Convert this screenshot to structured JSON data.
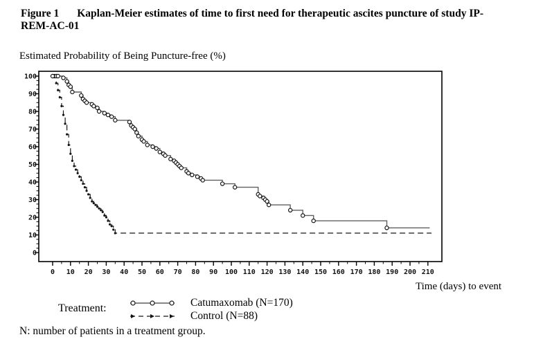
{
  "figure": {
    "label": "Figure 1",
    "title": "Kaplan-Meier estimates of time to first need for therapeutic ascites puncture of study IP-REM-AC-01"
  },
  "legend": {
    "label": "Treatment:"
  },
  "footnote": "N: number of patients in a treatment group.",
  "chart_data": {
    "type": "line",
    "subtype": "kaplan-meier-step",
    "title": "",
    "ylabel": "Estimated Probability of Being Puncture-free (%)",
    "xlabel": "Time (days) to event",
    "xlim": [
      0,
      210
    ],
    "ylim": [
      0,
      100
    ],
    "x_ticks": [
      0,
      10,
      20,
      30,
      40,
      50,
      60,
      70,
      80,
      90,
      100,
      110,
      120,
      130,
      140,
      150,
      160,
      170,
      180,
      190,
      200,
      210
    ],
    "y_ticks": [
      0,
      10,
      20,
      30,
      40,
      50,
      60,
      70,
      80,
      90,
      100
    ],
    "x_minor_step": 5,
    "y_minor_step": 2.5,
    "grid": false,
    "legend_position": "bottom",
    "series": [
      {
        "name": "Catumaxomab (N=170)",
        "line_style": "solid",
        "marker": "open-circle",
        "color": "#5f5f5f",
        "marker_color": "#151515",
        "end_day": 211,
        "extra_markers": [
          [
            1,
            100
          ],
          [
            2,
            100
          ],
          [
            3,
            100
          ]
        ],
        "points": [
          [
            0,
            100
          ],
          [
            6,
            99
          ],
          [
            8,
            97
          ],
          [
            9,
            95
          ],
          [
            10,
            94
          ],
          [
            11,
            91
          ],
          [
            16,
            89
          ],
          [
            17,
            87
          ],
          [
            18,
            86
          ],
          [
            19,
            85
          ],
          [
            22,
            84
          ],
          [
            23,
            83
          ],
          [
            25,
            82
          ],
          [
            26,
            80
          ],
          [
            29,
            79
          ],
          [
            31,
            78
          ],
          [
            33,
            77
          ],
          [
            35,
            75
          ],
          [
            43,
            74
          ],
          [
            44,
            72
          ],
          [
            45,
            71
          ],
          [
            46,
            70
          ],
          [
            47,
            68
          ],
          [
            48,
            66
          ],
          [
            50,
            64
          ],
          [
            51,
            63
          ],
          [
            53,
            61
          ],
          [
            56,
            60
          ],
          [
            58,
            59
          ],
          [
            60,
            57
          ],
          [
            62,
            56
          ],
          [
            63,
            55
          ],
          [
            66,
            53
          ],
          [
            68,
            52
          ],
          [
            69,
            51
          ],
          [
            70,
            50
          ],
          [
            71,
            49
          ],
          [
            72,
            48
          ],
          [
            75,
            46
          ],
          [
            76,
            45
          ],
          [
            78,
            44
          ],
          [
            81,
            43
          ],
          [
            83,
            42
          ],
          [
            84,
            41
          ],
          [
            95,
            39
          ],
          [
            102,
            37
          ],
          [
            115,
            33
          ],
          [
            116,
            32
          ],
          [
            118,
            31
          ],
          [
            119,
            30
          ],
          [
            120,
            29
          ],
          [
            121,
            27
          ],
          [
            133,
            24
          ],
          [
            140,
            21
          ],
          [
            146,
            18
          ],
          [
            187,
            14
          ]
        ]
      },
      {
        "name": "Control (N=88)",
        "line_style": "dashed",
        "marker": "dot",
        "color": "#151515",
        "marker_color": "#151515",
        "end_day": 212,
        "plateau_value": 11,
        "points": [
          [
            0,
            100
          ],
          [
            2,
            96
          ],
          [
            3,
            92
          ],
          [
            4,
            88
          ],
          [
            5,
            83
          ],
          [
            6,
            78
          ],
          [
            7,
            73
          ],
          [
            8,
            67
          ],
          [
            9,
            61
          ],
          [
            10,
            56
          ],
          [
            11,
            52
          ],
          [
            12,
            49
          ],
          [
            13,
            47
          ],
          [
            14,
            45
          ],
          [
            15,
            43
          ],
          [
            16,
            41
          ],
          [
            17,
            39
          ],
          [
            18,
            37
          ],
          [
            19,
            35
          ],
          [
            20,
            33
          ],
          [
            21,
            31
          ],
          [
            22,
            29
          ],
          [
            23,
            28
          ],
          [
            24,
            27
          ],
          [
            25,
            26
          ],
          [
            26,
            25
          ],
          [
            27,
            24
          ],
          [
            28,
            23
          ],
          [
            29,
            21
          ],
          [
            30,
            20
          ],
          [
            31,
            18
          ],
          [
            32,
            16
          ],
          [
            33,
            15
          ],
          [
            34,
            13
          ],
          [
            35,
            11
          ]
        ]
      }
    ]
  }
}
